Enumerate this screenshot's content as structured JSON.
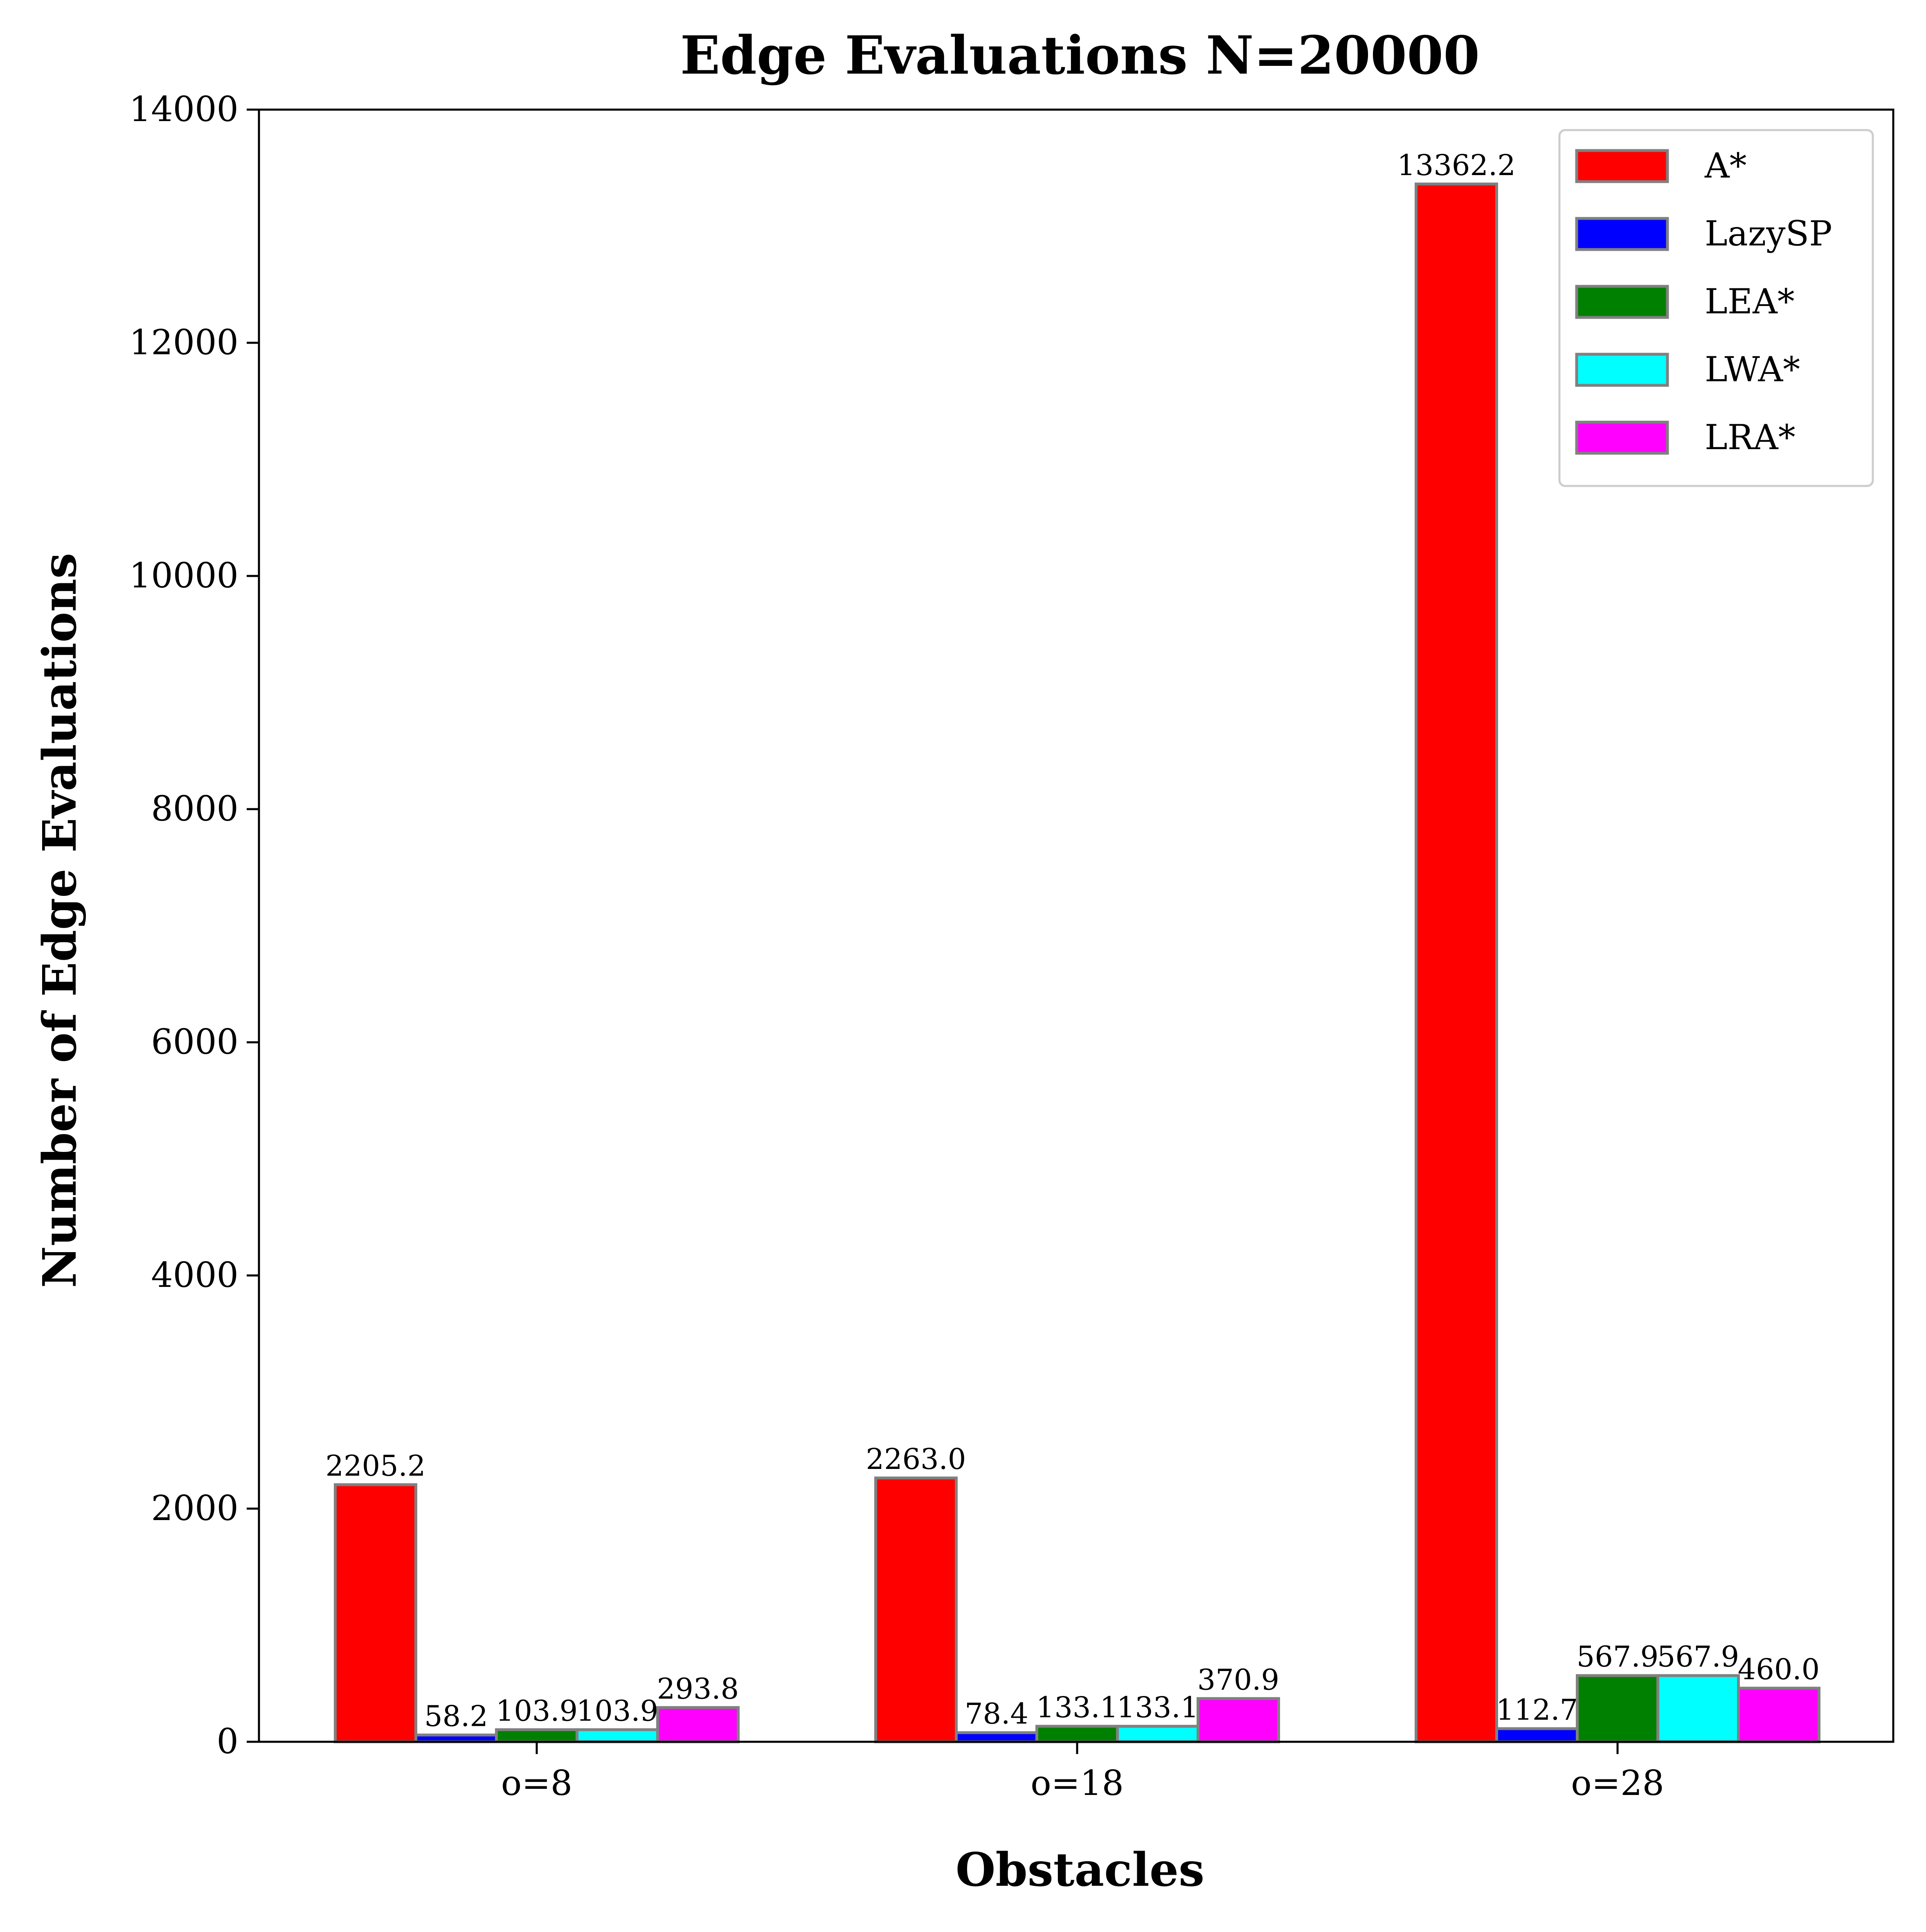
{
  "chart_data": {
    "type": "bar",
    "title": "Edge Evaluations N=20000",
    "xlabel": "Obstacles",
    "ylabel": "Number of Edge Evaluations",
    "categories": [
      "o=8",
      "o=18",
      "o=28"
    ],
    "ylim": [
      0,
      14000
    ],
    "yticks": [
      0,
      2000,
      4000,
      6000,
      8000,
      10000,
      12000,
      14000
    ],
    "ytick_labels": [
      "0",
      "2000",
      "4000",
      "6000",
      "8000",
      "10000",
      "12000",
      "14000"
    ],
    "legend_position": "top-right",
    "grid": false,
    "bar_edge_color": "#808080",
    "series": [
      {
        "name": "A*",
        "color": "#ff0000",
        "values": [
          2205.2,
          2263.0,
          13362.2
        ],
        "labels": [
          "2205.2",
          "2263.0",
          "13362.2"
        ]
      },
      {
        "name": "LazySP",
        "color": "#0000ff",
        "values": [
          58.2,
          78.4,
          112.7
        ],
        "labels": [
          "58.2",
          "78.4",
          "112.7"
        ]
      },
      {
        "name": "LEA*",
        "color": "#008000",
        "values": [
          103.9,
          133.1,
          567.9
        ],
        "labels": [
          "103.9",
          "133.1",
          "567.9"
        ]
      },
      {
        "name": "LWA*",
        "color": "#00ffff",
        "values": [
          103.9,
          133.1,
          567.9
        ],
        "labels": [
          "103.9",
          "133.1",
          "567.9"
        ]
      },
      {
        "name": "LRA*",
        "color": "#ff00ff",
        "values": [
          293.8,
          370.9,
          460.0
        ],
        "labels": [
          "293.8",
          "370.9",
          "460.0"
        ]
      }
    ]
  }
}
